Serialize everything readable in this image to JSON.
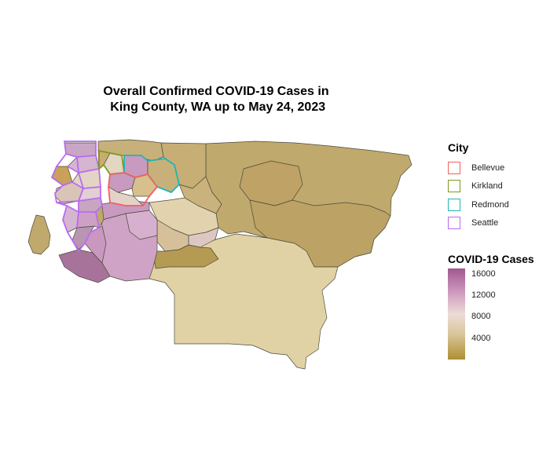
{
  "title": {
    "line1": "Overall Confirmed COVID-19 Cases in",
    "line2": " King County, WA up to May 24, 2023"
  },
  "legend_city": {
    "title": "City",
    "items": [
      {
        "label": "Bellevue",
        "color": "#f0615d"
      },
      {
        "label": "Kirkland",
        "color": "#7a9b1f"
      },
      {
        "label": "Redmond",
        "color": "#1fb5b5"
      },
      {
        "label": "Seattle",
        "color": "#b86bf2"
      }
    ]
  },
  "legend_cases": {
    "title": "COVID-19 Cases",
    "ticks": [
      "16000",
      "12000",
      "8000",
      "4000"
    ],
    "tick_values": [
      16000,
      12000,
      8000,
      4000
    ],
    "range": [
      0,
      17000
    ],
    "low_color": "#b08f32",
    "mid_color": "#eddcd7",
    "high_color": "#a0588f"
  }
}
